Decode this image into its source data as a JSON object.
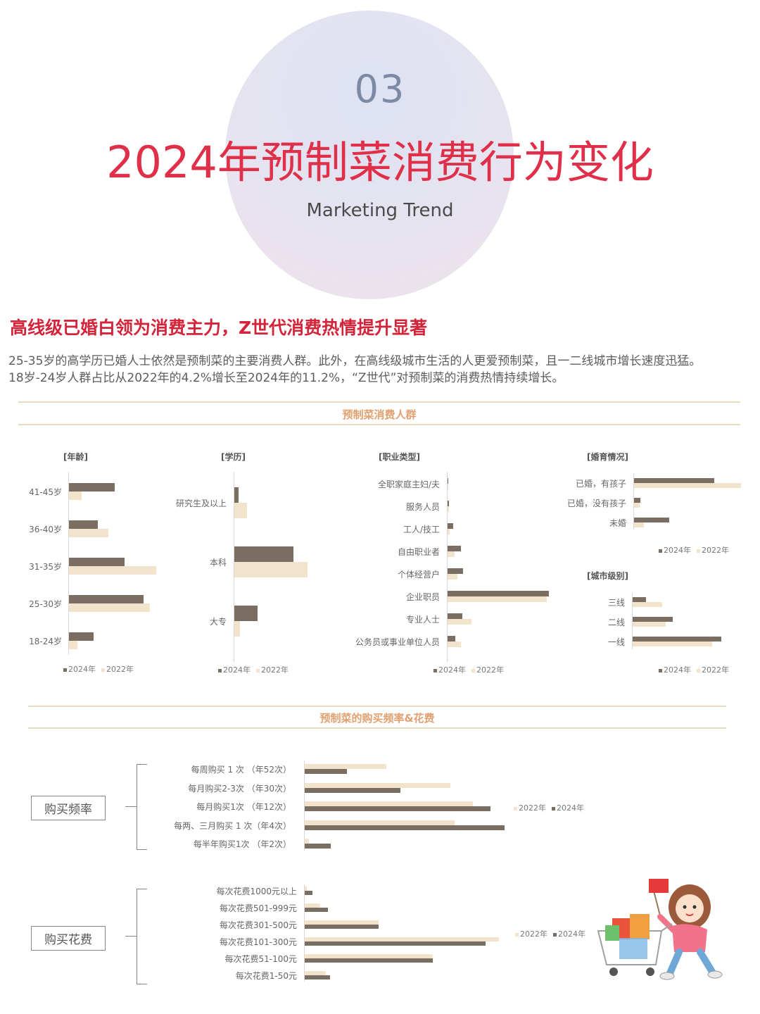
{
  "header": {
    "section_number": "03",
    "title": "2024年预制菜消费行为变化",
    "subtitle": "Marketing Trend"
  },
  "headline": "高线级已婚白领为消费主力，Z世代消费热情提升显著",
  "paragraph": {
    "line1": "25-35岁的高学历已婚人士依然是预制菜的主要消费人群。此外，在高线级城市生活的人更爱预制菜，且一二线城市增长速度迅猛。",
    "line2": "18岁-24岁人群占比从2022年的4.2%增长至2024年的11.2%，“Z世代”对预制菜的消费热情持续增长。"
  },
  "bands": {
    "consumers": "预制菜消费人群",
    "frequency": "预制菜的购买频率&花费"
  },
  "legend": {
    "y2024": "2024年",
    "y2022": "2022年"
  },
  "side_labels": {
    "frequency": "购买频率",
    "spend": "购买花费"
  },
  "colors": {
    "y2024": "#7a6d61",
    "y2022": "#f2e3cc",
    "title_red": "#e03049",
    "band_orange": "#e2a070"
  },
  "chart_data": [
    {
      "type": "bar",
      "orientation": "horizontal",
      "title": "[年龄]",
      "categories": [
        "41-45岁",
        "36-40岁",
        "31-35岁",
        "25-30岁",
        "18-24岁"
      ],
      "series": [
        {
          "name": "2024年",
          "values": [
            11.0,
            7.0,
            13.3,
            18.0,
            6.0
          ]
        },
        {
          "name": "2022年",
          "values": [
            3.0,
            9.5,
            21.0,
            19.5,
            2.0
          ]
        }
      ]
    },
    {
      "type": "bar",
      "orientation": "horizontal",
      "title": "[学历]",
      "categories": [
        "研究生及以上",
        "本科",
        "大专"
      ],
      "series": [
        {
          "name": "2024年",
          "values": [
            5,
            70,
            28
          ]
        },
        {
          "name": "2022年",
          "values": [
            15,
            87,
            7
          ]
        }
      ]
    },
    {
      "type": "bar",
      "orientation": "horizontal",
      "title": "[职业类型]",
      "categories": [
        "全职家庭主妇/夫",
        "服务人员",
        "工人/技工",
        "自由职业者",
        "个体经营户",
        "企业职员",
        "专业人士",
        "公务员或事业单位人员"
      ],
      "series": [
        {
          "name": "2024年",
          "values": [
            0.5,
            1.5,
            5,
            12,
            14,
            90,
            13,
            7
          ]
        },
        {
          "name": "2022年",
          "values": [
            0.2,
            1.0,
            2,
            6,
            9,
            88,
            21,
            12
          ]
        }
      ]
    },
    {
      "type": "bar",
      "orientation": "horizontal",
      "title": "[婚育情况]",
      "categories": [
        "已婚，有孩子",
        "已婚，没有孩子",
        "未婚"
      ],
      "series": [
        {
          "name": "2024年",
          "values": [
            75,
            6,
            33
          ]
        },
        {
          "name": "2022年",
          "values": [
            100,
            5,
            9
          ]
        }
      ]
    },
    {
      "type": "bar",
      "orientation": "horizontal",
      "title": "[城市级别]",
      "categories": [
        "三线",
        "二线",
        "一线"
      ],
      "series": [
        {
          "name": "2024年",
          "values": [
            15,
            45,
            100
          ]
        },
        {
          "name": "2022年",
          "values": [
            33,
            37,
            90
          ]
        }
      ]
    },
    {
      "type": "bar",
      "orientation": "horizontal",
      "title": "",
      "categories": [
        "每周购买 1 次 （年52次）",
        "每月购买2-3次 （年30次）",
        "每月购买1次 （年12次）",
        "每两、三月购买 1 次（年4次）",
        "每半年购买1次 （年2次）"
      ],
      "series": [
        {
          "name": "2022年",
          "values": [
            41,
            73,
            84,
            75,
            2
          ]
        },
        {
          "name": "2024年",
          "values": [
            21,
            48,
            93,
            100,
            13
          ]
        }
      ]
    },
    {
      "type": "bar",
      "orientation": "horizontal",
      "title": "",
      "categories": [
        "每次花费1000元以上",
        "每次花费501-999元",
        "每次花费301-500元",
        "每次花费101-300元",
        "每次花费51-100元",
        "每次花费1-50元"
      ],
      "series": [
        {
          "name": "2022年",
          "values": [
            1,
            8,
            38,
            100,
            66,
            11
          ]
        },
        {
          "name": "2024年",
          "values": [
            4,
            12,
            38,
            93,
            66,
            13
          ]
        }
      ]
    }
  ]
}
